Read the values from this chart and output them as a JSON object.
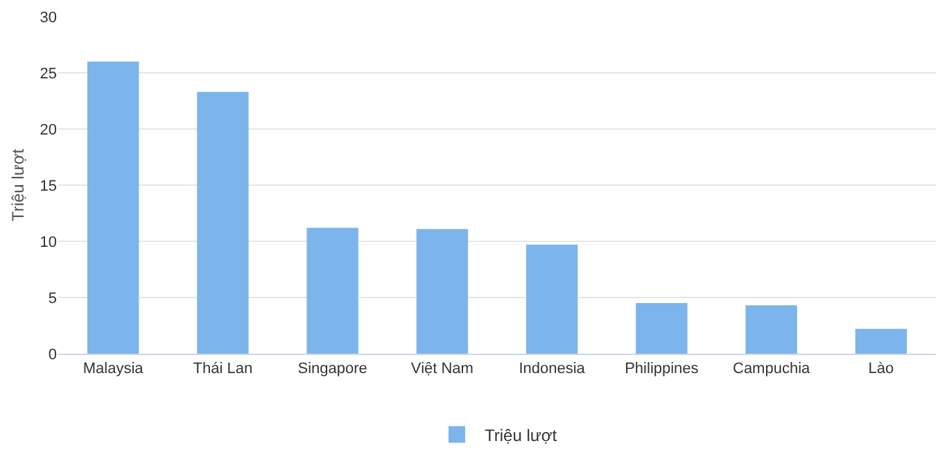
{
  "chart_data": {
    "type": "bar",
    "ylabel": "Triệu lượt",
    "categories": [
      "Malaysia",
      "Thái Lan",
      "Singapore",
      "Việt Nam",
      "Indonesia",
      "Philippines",
      "Campuchia",
      "Lào"
    ],
    "series": [
      {
        "name": "Triệu lượt",
        "color": "#7cb5ec",
        "values": [
          26.0,
          23.3,
          11.2,
          11.1,
          9.7,
          4.5,
          4.3,
          2.2
        ]
      }
    ],
    "ylim": [
      0,
      30
    ],
    "yticks": [
      0,
      5,
      10,
      15,
      20,
      25,
      30
    ],
    "grid": "y",
    "legend": "bottom"
  }
}
